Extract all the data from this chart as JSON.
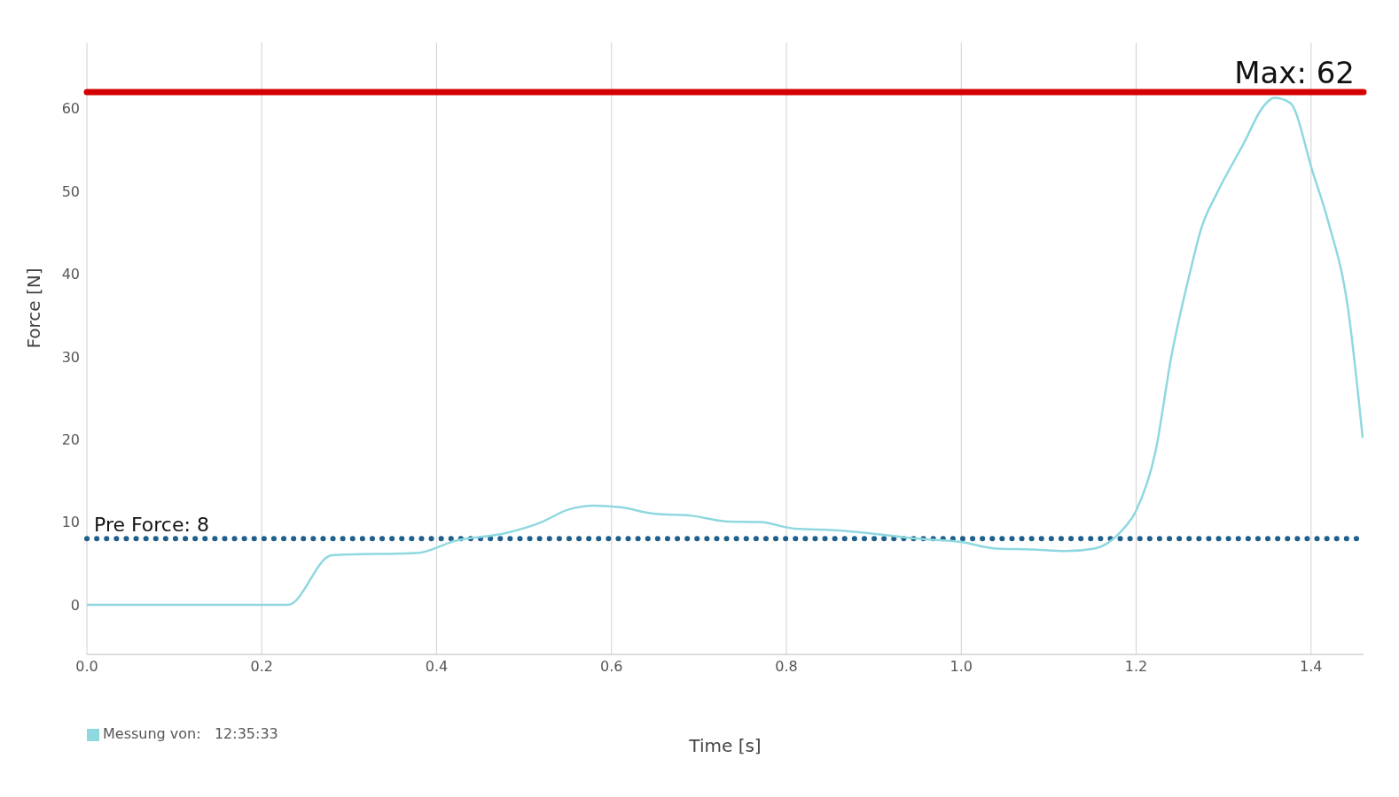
{
  "chart_data": {
    "type": "line",
    "xlabel": "Time [s]",
    "ylabel": "Force [N]",
    "x": [
      0,
      0.1,
      0.23,
      0.28,
      0.38,
      0.42,
      0.48,
      0.52,
      0.55,
      0.58,
      0.61,
      0.65,
      0.69,
      0.73,
      0.77,
      0.81,
      0.86,
      0.9,
      0.95,
      1.0,
      1.04,
      1.08,
      1.12,
      1.152,
      1.182,
      1.2,
      1.222,
      1.24,
      1.262,
      1.275,
      1.292,
      1.323,
      1.345,
      1.358,
      1.376,
      1.402,
      1.42,
      1.442,
      1.459
    ],
    "series": [
      {
        "name": "Messung von:   12:35:33",
        "color": "#8fd8e0",
        "values": [
          0,
          0,
          0,
          6,
          6.3,
          7.7,
          8.7,
          10,
          11.5,
          12,
          11.8,
          11,
          10.8,
          10.1,
          10,
          9.2,
          9,
          8.6,
          8,
          7.6,
          6.8,
          6.7,
          6.5,
          6.8,
          8.8,
          11.4,
          18.5,
          29.9,
          40.4,
          45.7,
          49.7,
          55.8,
          60.2,
          61.3,
          60.7,
          52.3,
          46.2,
          36,
          20.2
        ]
      }
    ],
    "xlim": [
      0,
      1.46
    ],
    "xticks": [
      {
        "value": 0,
        "label": "0.0"
      },
      0.2,
      0.4,
      0.6,
      0.8,
      {
        "value": 1,
        "label": "1.0"
      },
      1.2,
      1.4
    ],
    "ylim": [
      -6,
      68
    ],
    "yticks": [
      0,
      10,
      20,
      30,
      40,
      50,
      60
    ],
    "ref_lines": [
      {
        "axis": "y",
        "value": 62,
        "label": "Max: 62",
        "color": "#d40000",
        "line_style": "solid"
      },
      {
        "axis": "y",
        "value": 8,
        "label": "Pre Force: 8",
        "color": "#1f5f8b",
        "line_style": "dotted"
      }
    ],
    "grid": true,
    "legend": "bottom left",
    "marker": "none",
    "line_style": "solid"
  }
}
